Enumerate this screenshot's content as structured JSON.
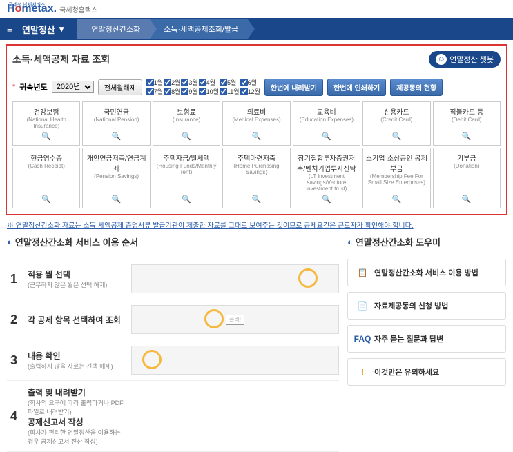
{
  "header": {
    "logo_main": "Hometax.",
    "logo_sub": "국세청홈택스",
    "logo_tag": "국세청 납세서비스"
  },
  "nav": {
    "menu": "연말정산",
    "bc1": "연말정산간소화",
    "bc2": "소득·세액공제조회/발급"
  },
  "main": {
    "title": "소득·세액공제 자료 조회",
    "chatbot": "연말정산 챗봇",
    "year_label": "귀속년도",
    "year_value": "2020년",
    "all_months": "전체월해제",
    "months1": [
      "1월",
      "2월",
      "3월",
      "4월",
      "5월",
      "6월"
    ],
    "months2": [
      "7월",
      "8월",
      "9월",
      "10월",
      "11월",
      "12월"
    ],
    "btn1": "한번에 내려받기",
    "btn2": "한번에 인쇄하기",
    "btn3": "제공동의 현황",
    "cards": [
      {
        "t": "건강보험",
        "s": "(National Health Insurance)"
      },
      {
        "t": "국민연금",
        "s": "(National Pension)"
      },
      {
        "t": "보험료",
        "s": "(Insurance)"
      },
      {
        "t": "의료비",
        "s": "(Medical Expenses)"
      },
      {
        "t": "교육비",
        "s": "(Education Expenses)"
      },
      {
        "t": "신용카드",
        "s": "(Credit Card)"
      },
      {
        "t": "직불카드 등",
        "s": "(Debit Card)"
      },
      {
        "t": "현금영수증",
        "s": "(Cash Receipt)"
      },
      {
        "t": "개인연금저축/연금계좌",
        "s": "(Pension Savings)"
      },
      {
        "t": "주택자금/월세액",
        "s": "(Housing Funds/Monthly rent)"
      },
      {
        "t": "주택마련저축",
        "s": "(Home Purchasing Savings)"
      },
      {
        "t": "장기집합투자증권저축/벤처기업투자신탁",
        "s": "(LT investment savings/Venture investment trust)"
      },
      {
        "t": "소기업·소상공인 공제부금",
        "s": "(Membership Fee For Small Size Enterprises)"
      },
      {
        "t": "기부금",
        "s": "(Donation)"
      }
    ]
  },
  "note": "※ 연말정산간소화 자료는 소득·세액공제 증명서류 발급기관이 제출한 자료를 그대로 보여주는 것이므로 공제요건은 근로자가 확인해야 합니다.",
  "steps": {
    "title": "연말정산간소화 서비스 이용 순서",
    "items": [
      {
        "n": "1",
        "t": "적용 월 선택",
        "s": "(근무하지 않은 월은 선택 해제)"
      },
      {
        "n": "2",
        "t": "각 공제 항목 선택하여 조회",
        "s": ""
      },
      {
        "n": "3",
        "t": "내용 확인",
        "s": "(출력하지 않을 자료는 선택 해제)"
      },
      {
        "n": "4",
        "t": "출력 및 내려받기",
        "s": "(회사의 요구에 따라 출력하거나 PDF파일로 내려받기)",
        "t2": "공제신고서 작성",
        "s2": "(회사가 편리한 연말정산을 이용하는 경우 공제신고서 전산 작성)"
      }
    ]
  },
  "helper": {
    "title": "연말정산간소화 도우미",
    "items": [
      {
        "icon": "📋",
        "t": "연말정산간소화 서비스 이용 방법"
      },
      {
        "icon": "📄",
        "t": "자료제공동의 신청 방법"
      },
      {
        "icon": "FAQ",
        "t": "자주 묻는 질문과 답변"
      },
      {
        "icon": "!",
        "t": "이것만은 유의하세요"
      }
    ]
  }
}
